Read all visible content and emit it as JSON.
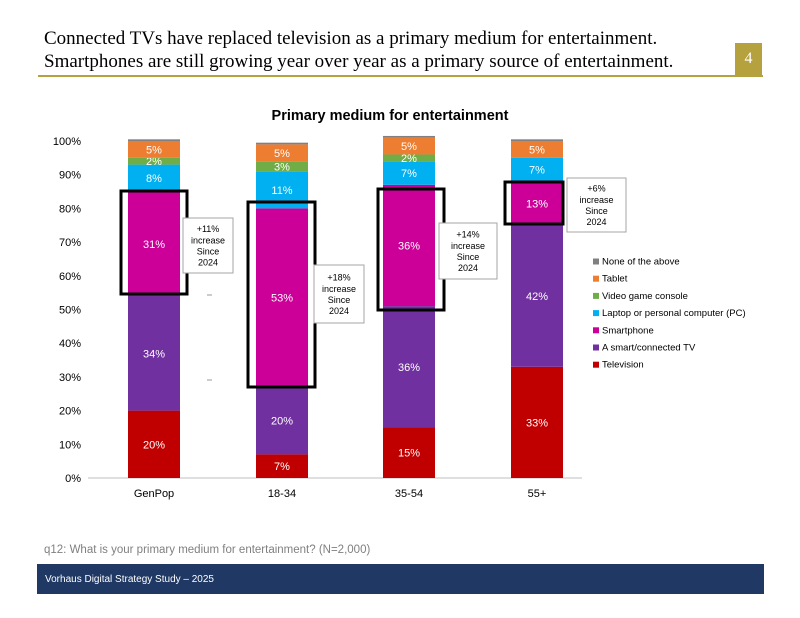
{
  "header": {
    "headline_line1": "Connected TVs have replaced television as a primary medium for entertainment.",
    "headline_line2": "Smartphones are still growing year over year as a primary source of entertainment.",
    "page_number": "4"
  },
  "footnote": "q12: What is your primary medium for entertainment? (N=2,000)",
  "footer": "Vorhaus Digital Strategy Study – 2025",
  "chart_data": {
    "type": "bar",
    "stacked": true,
    "title": "Primary medium for entertainment",
    "categories": [
      "GenPop",
      "18-34",
      "35-54",
      "55+"
    ],
    "ylim": [
      0,
      100
    ],
    "yticks": [
      "0%",
      "10%",
      "20%",
      "30%",
      "40%",
      "50%",
      "60%",
      "70%",
      "80%",
      "90%",
      "100%"
    ],
    "legend_position": "right",
    "series": [
      {
        "name": "Television",
        "color": "#c00000",
        "values": [
          20,
          7,
          15,
          33
        ],
        "labels": [
          "20%",
          "7%",
          "15%",
          "33%"
        ]
      },
      {
        "name": "A smart/connected TV",
        "color": "#7030a0",
        "values": [
          34,
          20,
          36,
          42
        ],
        "labels": [
          "34%",
          "20%",
          "36%",
          "42%"
        ]
      },
      {
        "name": "Smartphone",
        "color": "#cc0099",
        "values": [
          31,
          53,
          36,
          13
        ],
        "labels": [
          "31%",
          "53%",
          "36%",
          "13%"
        ]
      },
      {
        "name": "Laptop or personal computer (PC)",
        "color": "#00b0f0",
        "values": [
          8,
          11,
          7,
          7
        ],
        "labels": [
          "8%",
          "11%",
          "7%",
          "7%"
        ]
      },
      {
        "name": "Video game console",
        "color": "#70ad47",
        "values": [
          2,
          3,
          2,
          0
        ],
        "labels": [
          "2%",
          "3%",
          "2%",
          ""
        ]
      },
      {
        "name": "Tablet",
        "color": "#ed7d31",
        "values": [
          5,
          5,
          5,
          5
        ],
        "labels": [
          "5%",
          "5%",
          "5%",
          "5%"
        ]
      },
      {
        "name": "None of the above",
        "color": "#808080",
        "values": [
          0.5,
          0.5,
          0.5,
          0.5
        ],
        "labels": [
          "",
          "",
          "",
          ""
        ]
      }
    ],
    "annotations": [
      {
        "category": "GenPop",
        "lines": [
          "+11%",
          "increase",
          "Since",
          "2024"
        ]
      },
      {
        "category": "18-34",
        "lines": [
          "+18%",
          "increase",
          "Since",
          "2024"
        ]
      },
      {
        "category": "35-54",
        "lines": [
          "+14%",
          "increase",
          "Since",
          "2024"
        ]
      },
      {
        "category": "55+",
        "lines": [
          "+6%",
          "increase",
          "Since",
          "2024"
        ]
      }
    ]
  }
}
